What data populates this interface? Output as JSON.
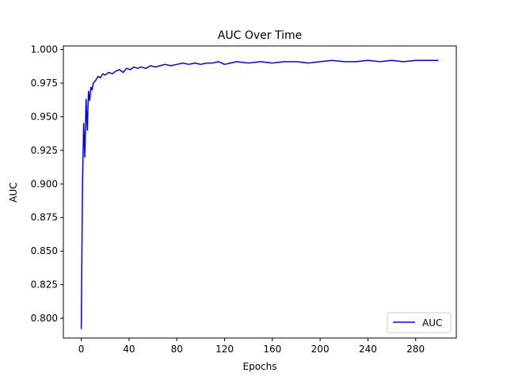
{
  "chart_data": {
    "type": "line",
    "title": "AUC Over Time",
    "xlabel": "Epochs",
    "ylabel": "AUC",
    "xlim": [
      -15,
      314
    ],
    "ylim": [
      0.7853,
      1.0027
    ],
    "xticks": [
      0,
      40,
      80,
      120,
      160,
      200,
      240,
      280
    ],
    "yticks": [
      0.8,
      0.825,
      0.85,
      0.875,
      0.9,
      0.925,
      0.95,
      0.975,
      1.0
    ],
    "xtick_labels": [
      "0",
      "40",
      "80",
      "120",
      "160",
      "200",
      "240",
      "280"
    ],
    "ytick_labels": [
      "0.800",
      "0.825",
      "0.850",
      "0.875",
      "0.900",
      "0.925",
      "0.950",
      "0.975",
      "1.000"
    ],
    "grid": false,
    "legend": {
      "placement": "lower-right",
      "entries": [
        "AUC"
      ]
    },
    "series": [
      {
        "name": "AUC",
        "color": "#0000ff",
        "x": [
          0,
          1,
          2,
          3,
          4,
          5,
          6,
          7,
          8,
          9,
          10,
          12,
          14,
          16,
          18,
          20,
          23,
          26,
          29,
          32,
          35,
          38,
          41,
          44,
          47,
          50,
          54,
          58,
          62,
          66,
          70,
          75,
          80,
          85,
          90,
          95,
          100,
          105,
          110,
          115,
          120,
          125,
          130,
          140,
          150,
          160,
          170,
          180,
          190,
          200,
          210,
          220,
          230,
          240,
          250,
          260,
          270,
          280,
          290,
          299
        ],
        "values": [
          0.792,
          0.9,
          0.945,
          0.92,
          0.963,
          0.94,
          0.969,
          0.962,
          0.972,
          0.97,
          0.975,
          0.977,
          0.98,
          0.979,
          0.982,
          0.981,
          0.983,
          0.982,
          0.984,
          0.985,
          0.983,
          0.986,
          0.985,
          0.987,
          0.986,
          0.987,
          0.986,
          0.988,
          0.987,
          0.988,
          0.989,
          0.988,
          0.989,
          0.99,
          0.989,
          0.99,
          0.989,
          0.99,
          0.99,
          0.991,
          0.989,
          0.99,
          0.991,
          0.99,
          0.991,
          0.99,
          0.991,
          0.991,
          0.99,
          0.991,
          0.992,
          0.991,
          0.991,
          0.992,
          0.991,
          0.992,
          0.991,
          0.992,
          0.992,
          0.992
        ]
      }
    ]
  }
}
